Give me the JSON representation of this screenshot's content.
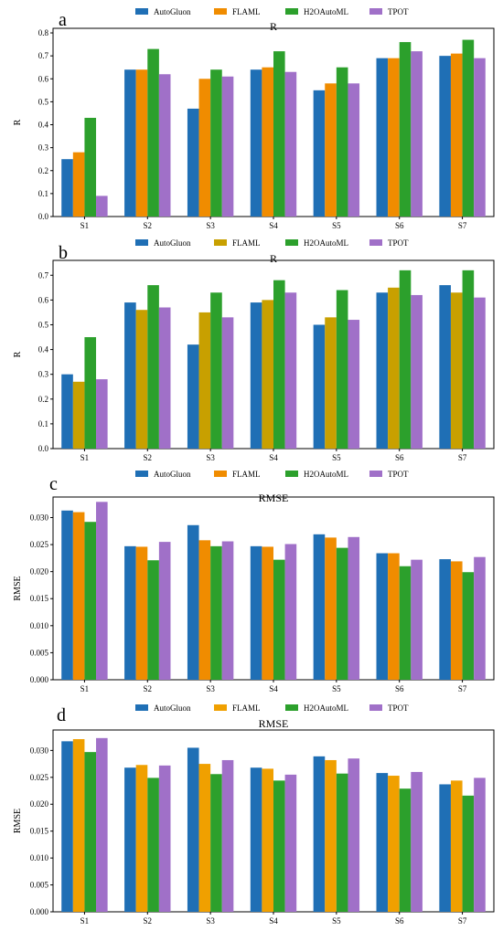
{
  "legend_colors": {
    "AutoGluon": "#1f6fb5",
    "FLAML": "#f08c00",
    "H2OAutoML": "#2ca02c",
    "TPOT": "#a070c8"
  },
  "panels": [
    {
      "letter": "a"
    },
    {
      "letter": "b"
    },
    {
      "letter": "c"
    },
    {
      "letter": "d"
    }
  ],
  "chart_data": [
    {
      "type": "bar",
      "title": "R",
      "ylabel": "R",
      "xlabel": "",
      "categories": [
        "S1",
        "S2",
        "S3",
        "S4",
        "S5",
        "S6",
        "S7"
      ],
      "ylim": [
        0,
        0.82
      ],
      "yticks": [
        0.0,
        0.1,
        0.2,
        0.3,
        0.4,
        0.5,
        0.6,
        0.7,
        0.8
      ],
      "ytick_labels": [
        "0.0",
        "0.1",
        "0.2",
        "0.3",
        "0.4",
        "0.5",
        "0.6",
        "0.7",
        "0.8"
      ],
      "legend": "top-center",
      "series": [
        {
          "name": "AutoGluon",
          "color": "#1f6fb5",
          "values": [
            0.25,
            0.64,
            0.47,
            0.64,
            0.55,
            0.69,
            0.7
          ]
        },
        {
          "name": "FLAML",
          "color": "#f08c00",
          "values": [
            0.28,
            0.64,
            0.6,
            0.65,
            0.58,
            0.69,
            0.71
          ]
        },
        {
          "name": "H2OAutoML",
          "color": "#2ca02c",
          "values": [
            0.43,
            0.73,
            0.64,
            0.72,
            0.65,
            0.76,
            0.77
          ]
        },
        {
          "name": "TPOT",
          "color": "#a070c8",
          "values": [
            0.09,
            0.62,
            0.61,
            0.63,
            0.58,
            0.72,
            0.69
          ]
        }
      ]
    },
    {
      "type": "bar",
      "title": "R",
      "ylabel": "R",
      "xlabel": "",
      "categories": [
        "S1",
        "S2",
        "S3",
        "S4",
        "S5",
        "S6",
        "S7"
      ],
      "ylim": [
        0,
        0.76
      ],
      "yticks": [
        0.0,
        0.1,
        0.2,
        0.3,
        0.4,
        0.5,
        0.6,
        0.7
      ],
      "ytick_labels": [
        "0.0",
        "0.1",
        "0.2",
        "0.3",
        "0.4",
        "0.5",
        "0.6",
        "0.7"
      ],
      "legend": "top-center",
      "series": [
        {
          "name": "AutoGluon",
          "color": "#1f6fb5",
          "values": [
            0.3,
            0.59,
            0.42,
            0.59,
            0.5,
            0.63,
            0.66
          ]
        },
        {
          "name": "FLAML",
          "color": "#c8a000",
          "values": [
            0.27,
            0.56,
            0.55,
            0.6,
            0.53,
            0.65,
            0.63
          ]
        },
        {
          "name": "H2OAutoML",
          "color": "#2ca02c",
          "values": [
            0.45,
            0.66,
            0.63,
            0.68,
            0.64,
            0.72,
            0.72
          ]
        },
        {
          "name": "TPOT",
          "color": "#a070c8",
          "values": [
            0.28,
            0.57,
            0.53,
            0.63,
            0.52,
            0.62,
            0.61
          ]
        }
      ]
    },
    {
      "type": "bar",
      "title": "RMSE",
      "ylabel": "RMSE",
      "xlabel": "",
      "categories": [
        "S1",
        "S2",
        "S3",
        "S4",
        "S5",
        "S6",
        "S7"
      ],
      "ylim": [
        0,
        0.0338
      ],
      "yticks": [
        0.0,
        0.005,
        0.01,
        0.015,
        0.02,
        0.025,
        0.03
      ],
      "ytick_labels": [
        "0.000",
        "0.005",
        "0.010",
        "0.015",
        "0.020",
        "0.025",
        "0.030"
      ],
      "legend": "top-center",
      "series": [
        {
          "name": "AutoGluon",
          "color": "#1f6fb5",
          "values": [
            0.0313,
            0.0247,
            0.0286,
            0.0247,
            0.0269,
            0.0234,
            0.0223
          ]
        },
        {
          "name": "FLAML",
          "color": "#f08c00",
          "values": [
            0.031,
            0.0246,
            0.0258,
            0.0246,
            0.0263,
            0.0234,
            0.0219
          ]
        },
        {
          "name": "H2OAutoML",
          "color": "#2ca02c",
          "values": [
            0.0292,
            0.0221,
            0.0247,
            0.0222,
            0.0244,
            0.021,
            0.0199
          ]
        },
        {
          "name": "TPOT",
          "color": "#a070c8",
          "values": [
            0.0329,
            0.0255,
            0.0256,
            0.0251,
            0.0264,
            0.0222,
            0.0227
          ]
        }
      ]
    },
    {
      "type": "bar",
      "title": "RMSE",
      "ylabel": "RMSE",
      "xlabel": "",
      "categories": [
        "S1",
        "S2",
        "S3",
        "S4",
        "S5",
        "S6",
        "S7"
      ],
      "ylim": [
        0,
        0.0338
      ],
      "yticks": [
        0.0,
        0.005,
        0.01,
        0.015,
        0.02,
        0.025,
        0.03
      ],
      "ytick_labels": [
        "0.000",
        "0.005",
        "0.010",
        "0.015",
        "0.020",
        "0.025",
        "0.030"
      ],
      "legend": "top-center",
      "series": [
        {
          "name": "AutoGluon",
          "color": "#1f6fb5",
          "values": [
            0.0317,
            0.0268,
            0.0305,
            0.0268,
            0.0289,
            0.0258,
            0.0237
          ]
        },
        {
          "name": "FLAML",
          "color": "#f0a000",
          "values": [
            0.0321,
            0.0273,
            0.0275,
            0.0266,
            0.0282,
            0.0253,
            0.0244
          ]
        },
        {
          "name": "H2OAutoML",
          "color": "#2ca02c",
          "values": [
            0.0297,
            0.0249,
            0.0256,
            0.0244,
            0.0257,
            0.0229,
            0.0216
          ]
        },
        {
          "name": "TPOT",
          "color": "#a070c8",
          "values": [
            0.0323,
            0.0272,
            0.0282,
            0.0255,
            0.0285,
            0.026,
            0.0249
          ]
        }
      ]
    }
  ]
}
